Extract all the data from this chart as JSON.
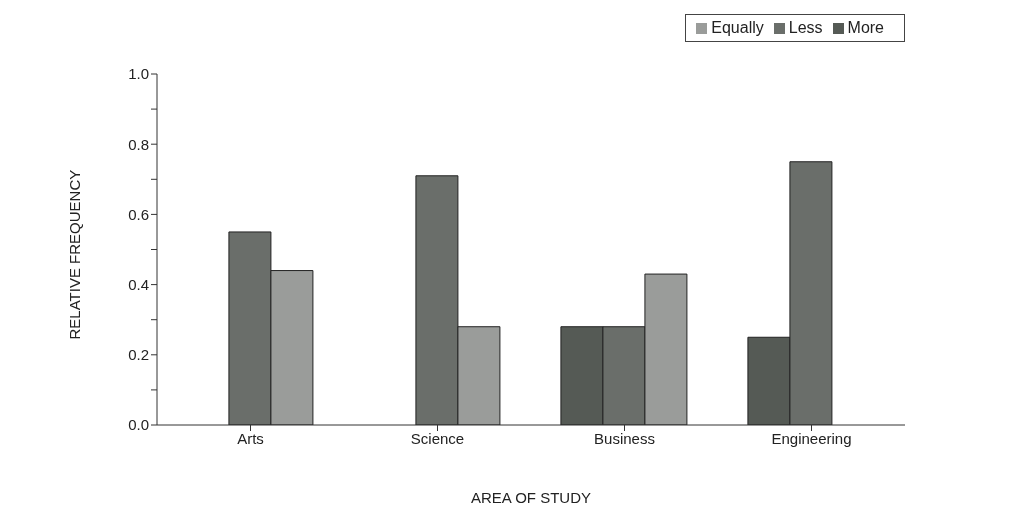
{
  "chart_data": {
    "type": "bar",
    "xlabel": "AREA OF STUDY",
    "ylabel": "RELATIVE FREQUENCY",
    "categories": [
      "Arts",
      "Science",
      "Business",
      "Engineering"
    ],
    "series": [
      {
        "name": "More",
        "color": "#555a55",
        "values": [
          null,
          null,
          0.28,
          0.25
        ]
      },
      {
        "name": "Less",
        "color": "#6a6e6a",
        "values": [
          0.55,
          0.71,
          0.28,
          0.75
        ]
      },
      {
        "name": "Equally",
        "color": "#9a9c9a",
        "values": [
          0.44,
          0.28,
          0.43,
          null
        ]
      }
    ],
    "ylim": [
      0,
      1
    ],
    "yticks": [
      {
        "value": 0,
        "label": "0.0"
      },
      {
        "value": 0.1,
        "label": null
      },
      {
        "value": 0.2,
        "label": "0.2"
      },
      {
        "value": 0.3,
        "label": null
      },
      {
        "value": 0.4,
        "label": "0.4"
      },
      {
        "value": 0.5,
        "label": null
      },
      {
        "value": 0.6,
        "label": "0.6"
      },
      {
        "value": 0.7,
        "label": null
      },
      {
        "value": 0.8,
        "label": "0.8"
      },
      {
        "value": 0.9,
        "label": null
      },
      {
        "value": 1,
        "label": "1.0"
      }
    ],
    "grid": false,
    "legend": "top right"
  }
}
